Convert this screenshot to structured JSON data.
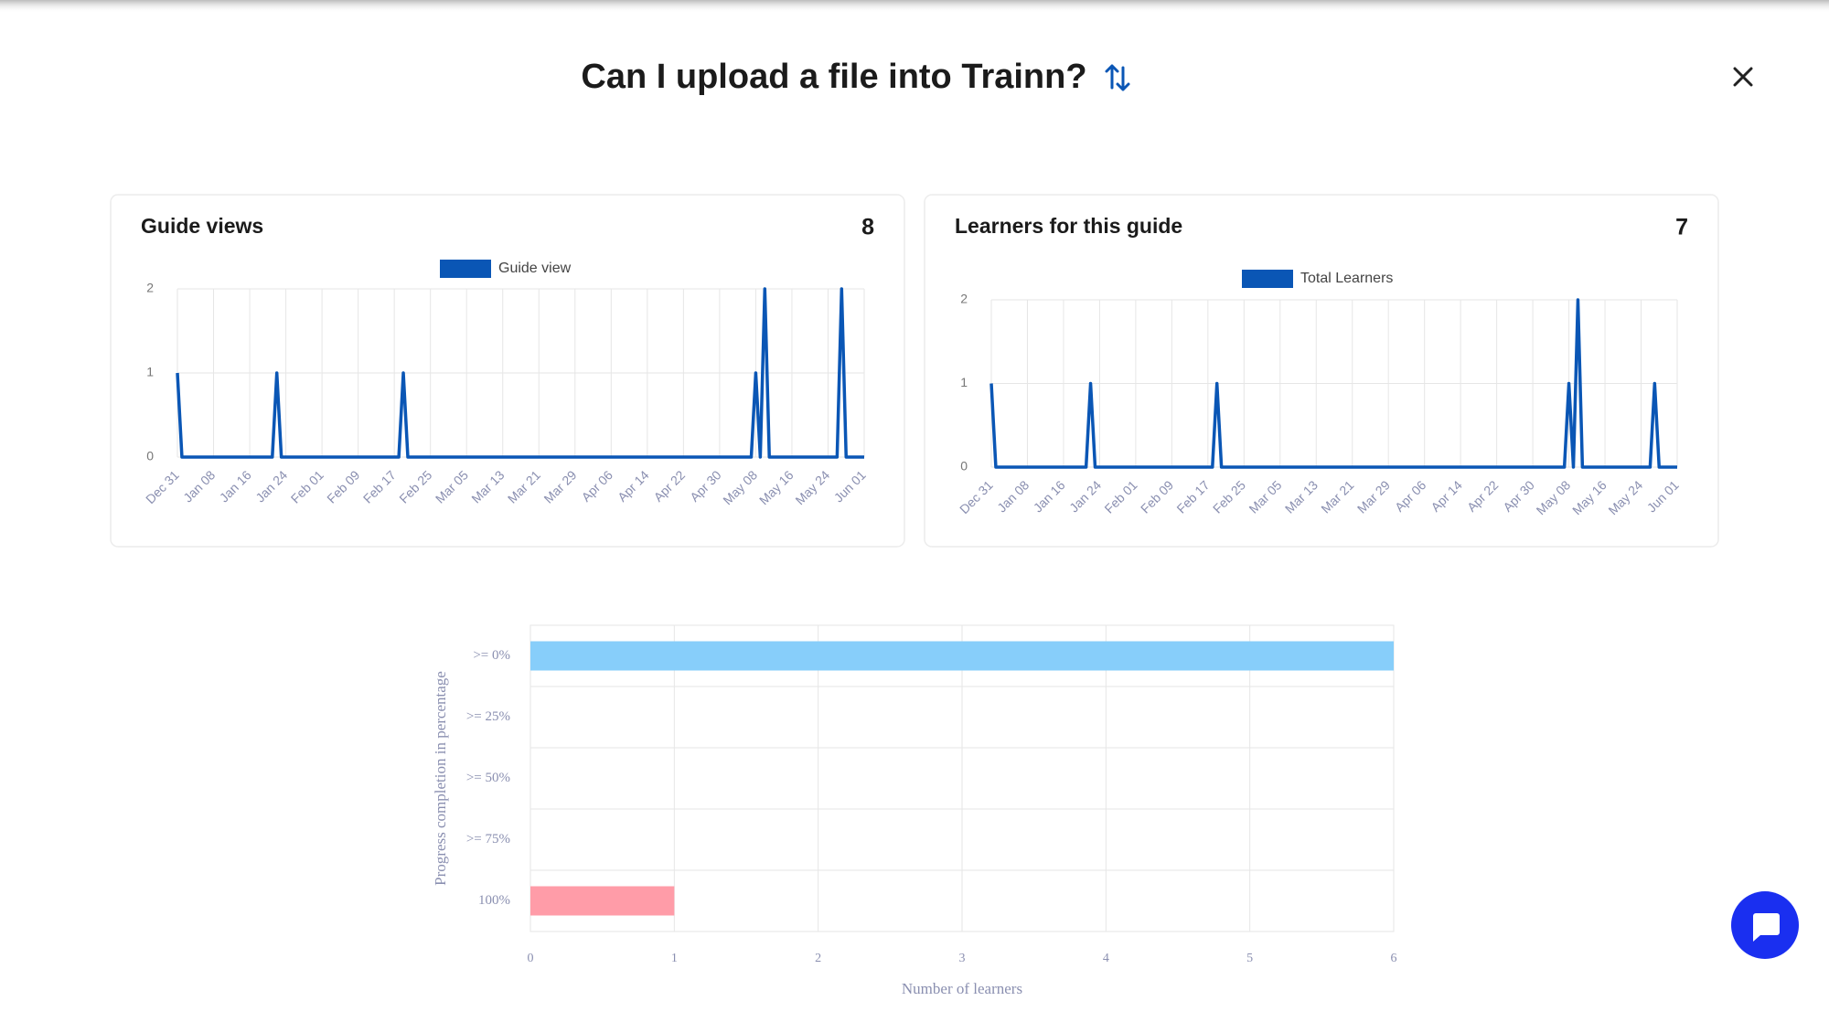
{
  "header": {
    "title": "Can I upload a file into Trainn?"
  },
  "chart_data": [
    {
      "type": "line",
      "title": "Guide views",
      "total": 8,
      "legend_position": "top",
      "categories": [
        "Dec 31",
        null,
        null,
        null,
        null,
        null,
        null,
        null,
        "Jan 08",
        null,
        null,
        null,
        null,
        null,
        null,
        null,
        "Jan 16",
        null,
        null,
        null,
        null,
        null,
        null,
        null,
        "Jan 24",
        null,
        null,
        null,
        null,
        null,
        null,
        null,
        "Feb 01",
        null,
        null,
        null,
        null,
        null,
        null,
        null,
        "Feb 09",
        null,
        null,
        null,
        null,
        null,
        null,
        null,
        "Feb 17",
        null,
        null,
        null,
        null,
        null,
        null,
        null,
        "Feb 25",
        null,
        null,
        null,
        null,
        null,
        null,
        null,
        "Mar 05",
        null,
        null,
        null,
        null,
        null,
        null,
        null,
        "Mar 13",
        null,
        null,
        null,
        null,
        null,
        null,
        null,
        "Mar 21",
        null,
        null,
        null,
        null,
        null,
        null,
        null,
        "Mar 29",
        null,
        null,
        null,
        null,
        null,
        null,
        null,
        "Apr 06",
        null,
        null,
        null,
        null,
        null,
        null,
        null,
        "Apr 14",
        null,
        null,
        null,
        null,
        null,
        null,
        null,
        "Apr 22",
        null,
        null,
        null,
        null,
        null,
        null,
        null,
        "Apr 30",
        null,
        null,
        null,
        null,
        null,
        null,
        null,
        "May 08",
        null,
        null,
        null,
        null,
        null,
        null,
        null,
        "May 16",
        null,
        null,
        null,
        null,
        null,
        null,
        null,
        "May 24",
        null,
        null,
        null,
        null,
        null,
        null,
        null,
        "Jun 01"
      ],
      "series": [
        {
          "name": "Guide view",
          "color": "#0a56b5",
          "values": [
            1,
            0,
            0,
            0,
            0,
            0,
            0,
            0,
            0,
            0,
            0,
            0,
            0,
            0,
            0,
            0,
            0,
            0,
            0,
            0,
            0,
            0,
            1,
            0,
            0,
            0,
            0,
            0,
            0,
            0,
            0,
            0,
            0,
            0,
            0,
            0,
            0,
            0,
            0,
            0,
            0,
            0,
            0,
            0,
            0,
            0,
            0,
            0,
            0,
            0,
            1,
            0,
            0,
            0,
            0,
            0,
            0,
            0,
            0,
            0,
            0,
            0,
            0,
            0,
            0,
            0,
            0,
            0,
            0,
            0,
            0,
            0,
            0,
            0,
            0,
            0,
            0,
            0,
            0,
            0,
            0,
            0,
            0,
            0,
            0,
            0,
            0,
            0,
            0,
            0,
            0,
            0,
            0,
            0,
            0,
            0,
            0,
            0,
            0,
            0,
            0,
            0,
            0,
            0,
            0,
            0,
            0,
            0,
            0,
            0,
            0,
            0,
            0,
            0,
            0,
            0,
            0,
            0,
            0,
            0,
            0,
            0,
            0,
            0,
            0,
            0,
            0,
            0,
            1,
            0,
            2,
            0,
            0,
            0,
            0,
            0,
            0,
            0,
            0,
            0,
            0,
            0,
            0,
            0,
            0,
            0,
            0,
            2,
            0,
            0,
            0,
            0,
            0
          ]
        }
      ],
      "ylim": [
        0,
        2
      ],
      "yticks": [
        0,
        1,
        2
      ],
      "grid": true
    },
    {
      "type": "line",
      "title": "Learners for this guide",
      "total": 7,
      "legend_position": "top",
      "categories": [
        "Dec 31",
        null,
        null,
        null,
        null,
        null,
        null,
        null,
        "Jan 08",
        null,
        null,
        null,
        null,
        null,
        null,
        null,
        "Jan 16",
        null,
        null,
        null,
        null,
        null,
        null,
        null,
        "Jan 24",
        null,
        null,
        null,
        null,
        null,
        null,
        null,
        "Feb 01",
        null,
        null,
        null,
        null,
        null,
        null,
        null,
        "Feb 09",
        null,
        null,
        null,
        null,
        null,
        null,
        null,
        "Feb 17",
        null,
        null,
        null,
        null,
        null,
        null,
        null,
        "Feb 25",
        null,
        null,
        null,
        null,
        null,
        null,
        null,
        "Mar 05",
        null,
        null,
        null,
        null,
        null,
        null,
        null,
        "Mar 13",
        null,
        null,
        null,
        null,
        null,
        null,
        null,
        "Mar 21",
        null,
        null,
        null,
        null,
        null,
        null,
        null,
        "Mar 29",
        null,
        null,
        null,
        null,
        null,
        null,
        null,
        "Apr 06",
        null,
        null,
        null,
        null,
        null,
        null,
        null,
        "Apr 14",
        null,
        null,
        null,
        null,
        null,
        null,
        null,
        "Apr 22",
        null,
        null,
        null,
        null,
        null,
        null,
        null,
        "Apr 30",
        null,
        null,
        null,
        null,
        null,
        null,
        null,
        "May 08",
        null,
        null,
        null,
        null,
        null,
        null,
        null,
        "May 16",
        null,
        null,
        null,
        null,
        null,
        null,
        null,
        "May 24",
        null,
        null,
        null,
        null,
        null,
        null,
        null,
        "Jun 01"
      ],
      "series": [
        {
          "name": "Total Learners",
          "color": "#0a56b5",
          "values": [
            1,
            0,
            0,
            0,
            0,
            0,
            0,
            0,
            0,
            0,
            0,
            0,
            0,
            0,
            0,
            0,
            0,
            0,
            0,
            0,
            0,
            0,
            1,
            0,
            0,
            0,
            0,
            0,
            0,
            0,
            0,
            0,
            0,
            0,
            0,
            0,
            0,
            0,
            0,
            0,
            0,
            0,
            0,
            0,
            0,
            0,
            0,
            0,
            0,
            0,
            1,
            0,
            0,
            0,
            0,
            0,
            0,
            0,
            0,
            0,
            0,
            0,
            0,
            0,
            0,
            0,
            0,
            0,
            0,
            0,
            0,
            0,
            0,
            0,
            0,
            0,
            0,
            0,
            0,
            0,
            0,
            0,
            0,
            0,
            0,
            0,
            0,
            0,
            0,
            0,
            0,
            0,
            0,
            0,
            0,
            0,
            0,
            0,
            0,
            0,
            0,
            0,
            0,
            0,
            0,
            0,
            0,
            0,
            0,
            0,
            0,
            0,
            0,
            0,
            0,
            0,
            0,
            0,
            0,
            0,
            0,
            0,
            0,
            0,
            0,
            0,
            0,
            0,
            1,
            0,
            2,
            0,
            0,
            0,
            0,
            0,
            0,
            0,
            0,
            0,
            0,
            0,
            0,
            0,
            0,
            0,
            0,
            1,
            0,
            0,
            0,
            0,
            0
          ]
        }
      ],
      "ylim": [
        0,
        2
      ],
      "yticks": [
        0,
        1,
        2
      ],
      "grid": true
    },
    {
      "type": "hbar",
      "xlabel": "Number of learners",
      "ylabel": "Progress completion in percentage",
      "categories": [
        ">= 0%",
        ">= 25%",
        ">= 50%",
        ">= 75%",
        "100%"
      ],
      "values": [
        6,
        0,
        0,
        0,
        1
      ],
      "colors": [
        "#87cefa",
        "#87cefa",
        "#87cefa",
        "#87cefa",
        "#ff9ca8"
      ],
      "xlim": [
        0,
        6
      ],
      "xticks": [
        0,
        1,
        2,
        3,
        4,
        5,
        6
      ],
      "grid": true
    }
  ]
}
